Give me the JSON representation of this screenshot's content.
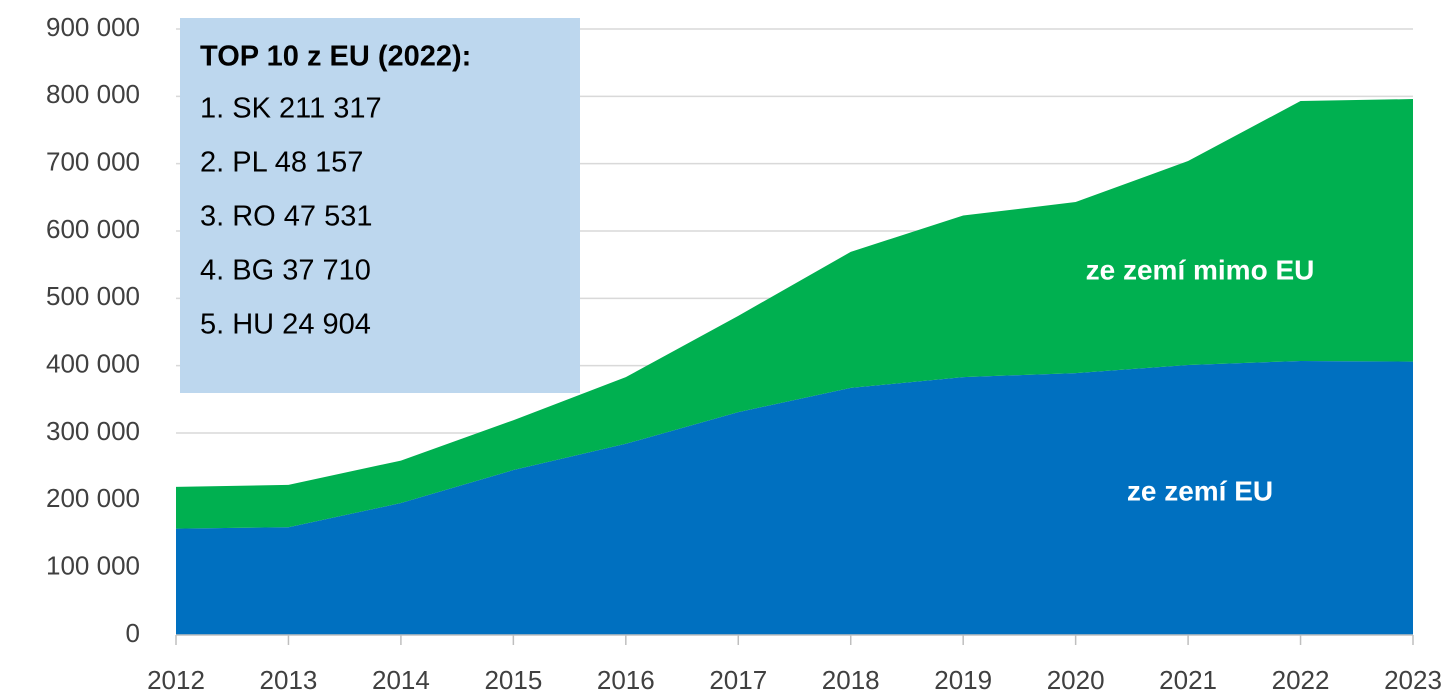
{
  "chart_data": {
    "type": "stacked_area",
    "x": [
      2012,
      2013,
      2014,
      2015,
      2016,
      2017,
      2018,
      2019,
      2020,
      2021,
      2022,
      2023
    ],
    "series": [
      {
        "name": "ze zemí EU",
        "color": "#0070c0",
        "values": [
          158000,
          160000,
          196000,
          245000,
          284000,
          331000,
          367000,
          383000,
          389000,
          401000,
          407000,
          406000
        ]
      },
      {
        "name": "ze zemí mimo EU",
        "color": "#00b050",
        "values": [
          62000,
          63000,
          63000,
          74000,
          99000,
          143000,
          202000,
          240000,
          254000,
          303000,
          386000,
          390000
        ]
      }
    ],
    "xlim": [
      2012,
      2023
    ],
    "xticks": [
      2012,
      2013,
      2014,
      2015,
      2016,
      2017,
      2018,
      2019,
      2020,
      2021,
      2022,
      2023
    ],
    "ylim": [
      0,
      900000
    ],
    "yticks": [
      0,
      {
        "value": 100000,
        "label": "100 000"
      },
      {
        "value": 200000,
        "label": "200 000"
      },
      {
        "value": 300000,
        "label": "300 000"
      },
      {
        "value": 400000,
        "label": "400 000"
      },
      {
        "value": 500000,
        "label": "500 000"
      },
      {
        "value": 600000,
        "label": "600 000"
      },
      {
        "value": 700000,
        "label": "700 000"
      },
      {
        "value": 800000,
        "label": "800 000"
      },
      {
        "value": 900000,
        "label": "900 000"
      }
    ],
    "grid": true,
    "annotation": {
      "title": "TOP 10 z EU (2022):",
      "items": [
        "1. SK 211 317",
        "2. PL 48 157",
        "3. RO 47 531",
        "4. BG 37 710",
        "5. HU 24 904"
      ]
    }
  }
}
